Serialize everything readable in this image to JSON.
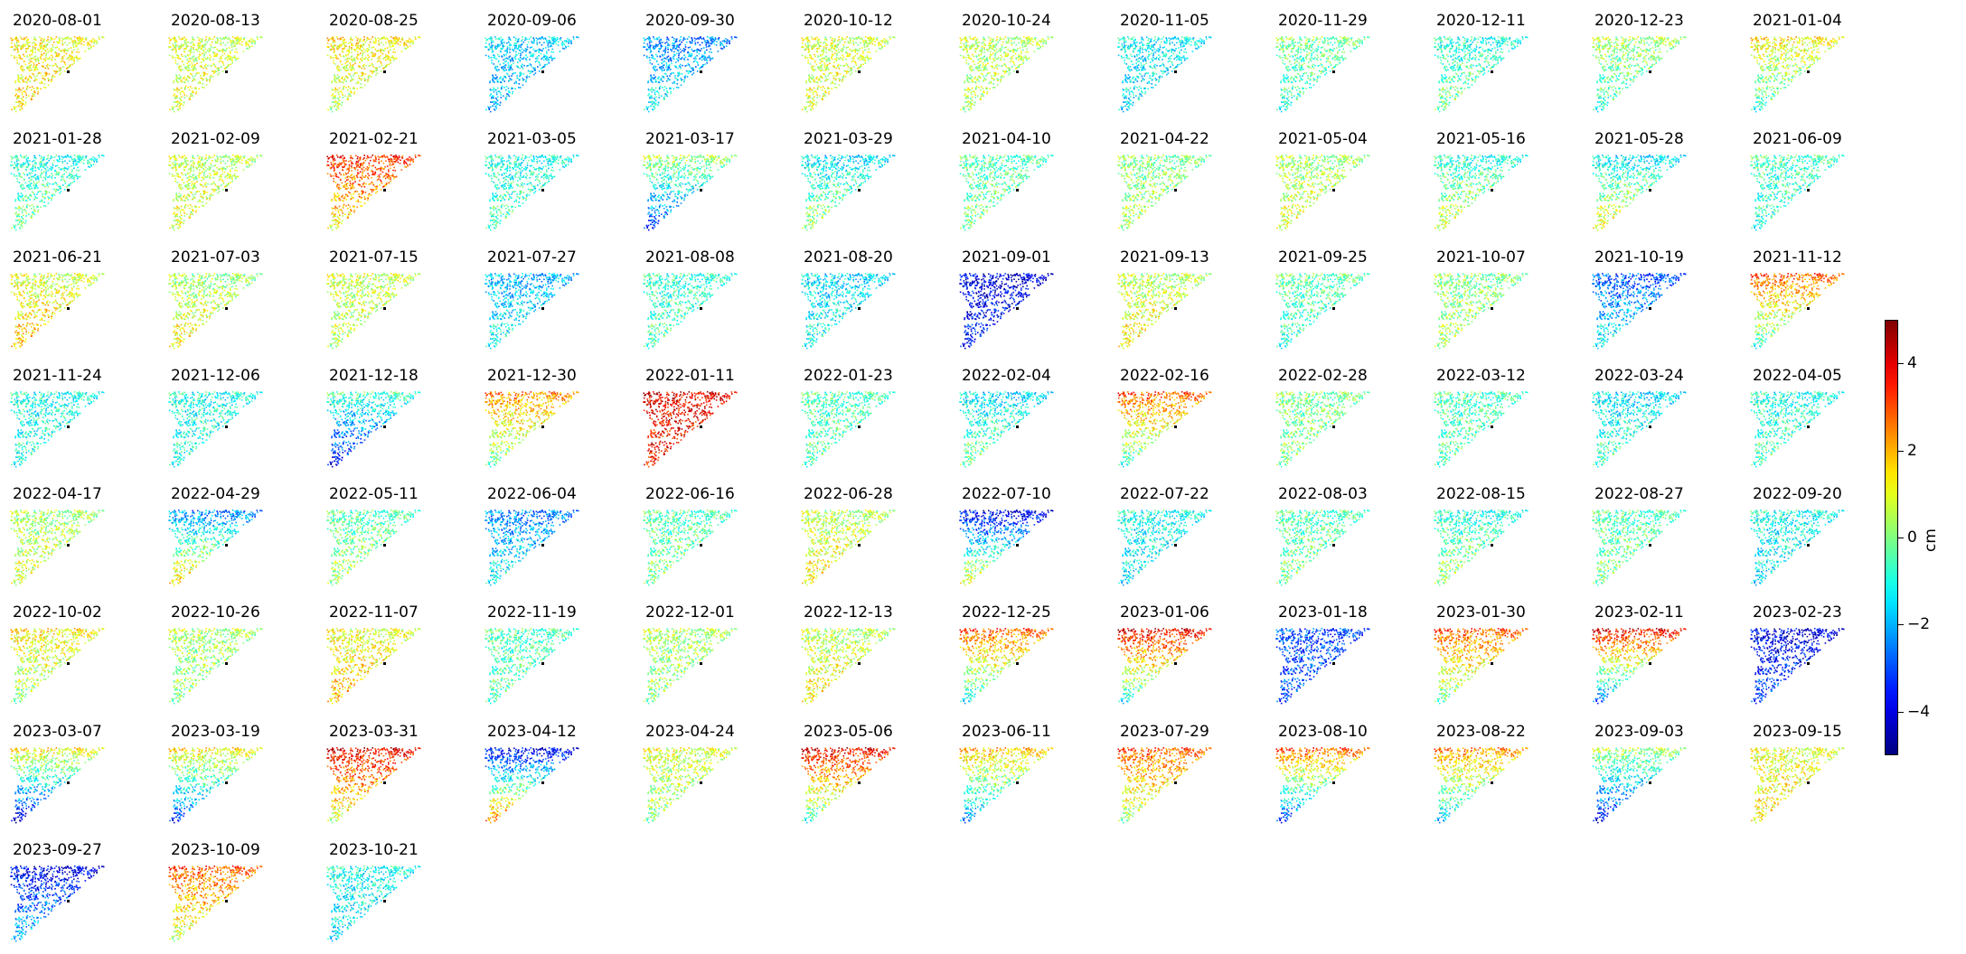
{
  "chart_data": {
    "type": "heatmap",
    "dates": [
      "2020-08-01",
      "2020-08-13",
      "2020-08-25",
      "2020-09-06",
      "2020-09-30",
      "2020-10-12",
      "2020-10-24",
      "2020-11-05",
      "2020-11-29",
      "2020-12-11",
      "2020-12-23",
      "2021-01-04",
      "2021-01-28",
      "2021-02-09",
      "2021-02-21",
      "2021-03-05",
      "2021-03-17",
      "2021-03-29",
      "2021-04-10",
      "2021-04-22",
      "2021-05-04",
      "2021-05-16",
      "2021-05-28",
      "2021-06-09",
      "2021-06-21",
      "2021-07-03",
      "2021-07-15",
      "2021-07-27",
      "2021-08-08",
      "2021-08-20",
      "2021-09-01",
      "2021-09-13",
      "2021-09-25",
      "2021-10-07",
      "2021-10-19",
      "2021-11-12",
      "2021-11-24",
      "2021-12-06",
      "2021-12-18",
      "2021-12-30",
      "2022-01-11",
      "2022-01-23",
      "2022-02-04",
      "2022-02-16",
      "2022-02-28",
      "2022-03-12",
      "2022-03-24",
      "2022-04-05",
      "2022-04-17",
      "2022-04-29",
      "2022-05-11",
      "2022-06-04",
      "2022-06-16",
      "2022-06-28",
      "2022-07-10",
      "2022-07-22",
      "2022-08-03",
      "2022-08-15",
      "2022-08-27",
      "2022-09-20",
      "2022-10-02",
      "2022-10-26",
      "2022-11-07",
      "2022-11-19",
      "2022-12-01",
      "2022-12-13",
      "2022-12-25",
      "2023-01-06",
      "2023-01-18",
      "2023-01-30",
      "2023-02-11",
      "2023-02-23",
      "2023-03-07",
      "2023-03-19",
      "2023-03-31",
      "2023-04-12",
      "2023-04-24",
      "2023-05-06",
      "2023-06-11",
      "2023-07-29",
      "2023-08-10",
      "2023-08-22",
      "2023-09-03",
      "2023-09-15",
      "2023-09-27",
      "2023-10-09",
      "2023-10-21"
    ],
    "north_mean": [
      1.2,
      0.8,
      1.5,
      -1.5,
      -2.5,
      0.8,
      0.6,
      -1.2,
      0.0,
      -1.0,
      0.5,
      1.5,
      -1.0,
      0.6,
      3.5,
      -1.0,
      0.5,
      -1.5,
      -0.5,
      0.0,
      0.3,
      -1.0,
      -1.5,
      -0.5,
      0.8,
      0.2,
      0.8,
      -2.0,
      -0.8,
      -1.5,
      -4.0,
      0.5,
      -0.2,
      0.0,
      -3.0,
      3.0,
      -1.0,
      -1.0,
      -0.5,
      2.5,
      4.0,
      -0.5,
      -1.5,
      3.0,
      0.0,
      -0.5,
      -1.5,
      -1.0,
      0.3,
      -2.5,
      -0.5,
      -2.5,
      -0.5,
      0.5,
      -4.0,
      -1.0,
      -0.5,
      -1.0,
      -0.5,
      -1.0,
      1.5,
      0.5,
      1.0,
      -0.5,
      0.5,
      0.5,
      3.0,
      4.0,
      -3.0,
      3.0,
      4.0,
      -4.0,
      1.5,
      1.5,
      4.0,
      -4.0,
      1.0,
      4.0,
      2.0,
      3.0,
      3.0,
      2.5,
      0.5,
      1.0,
      -4.0,
      3.0,
      -1.0
    ],
    "south_mean": [
      1.5,
      1.0,
      0.5,
      -2.0,
      -1.0,
      1.0,
      0.5,
      -1.5,
      -1.0,
      0.0,
      -1.0,
      -1.0,
      0.0,
      1.0,
      1.0,
      -0.5,
      -3.5,
      0.5,
      0.0,
      0.5,
      1.0,
      1.0,
      1.5,
      -1.0,
      2.0,
      1.5,
      0.5,
      -1.0,
      -0.5,
      -1.0,
      -3.5,
      1.5,
      -1.0,
      0.5,
      -1.0,
      -1.0,
      -1.0,
      -1.0,
      -4.0,
      -0.5,
      3.5,
      -0.5,
      0.0,
      -1.0,
      0.0,
      -0.5,
      -0.5,
      -0.5,
      1.0,
      2.0,
      0.5,
      -1.0,
      0.0,
      1.5,
      1.5,
      -1.5,
      0.0,
      0.5,
      0.0,
      -1.5,
      0.0,
      0.0,
      2.0,
      -0.5,
      0.0,
      1.5,
      -1.5,
      -1.5,
      -3.0,
      -0.5,
      -3.0,
      -3.0,
      -4.5,
      -3.5,
      0.5,
      3.0,
      0.0,
      -1.0,
      -2.5,
      0.0,
      -3.5,
      -2.0,
      -4.0,
      1.5,
      -1.5,
      0.5,
      -1.5
    ],
    "colorbar": {
      "colormap": "jet",
      "range": [
        -5,
        5
      ],
      "ticks": [
        4,
        2,
        0,
        -2,
        -4
      ],
      "tick_labels": [
        "4",
        "2",
        "0",
        "−2",
        "−4"
      ],
      "label": "cm"
    }
  }
}
